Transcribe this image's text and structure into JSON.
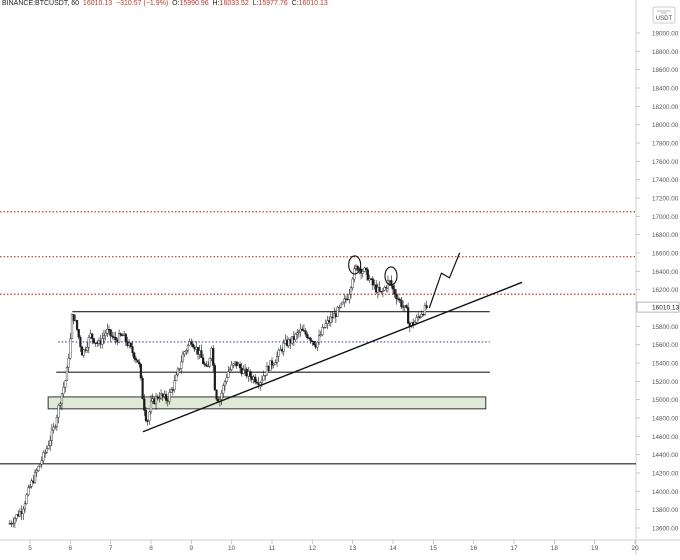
{
  "header": {
    "symbol": "BINANCE:BTCUSDT, 60",
    "close_value": "16010.13",
    "change": "−310.57 (−1.9%)",
    "open_label": "O:",
    "open": "15990.96",
    "high_label": "H:",
    "high": "16033.52",
    "low_label": "L:",
    "low": "15977.76",
    "close_label": "C:",
    "close": "16010.13"
  },
  "chart_data": {
    "type": "candlestick",
    "unit_label": "USDT",
    "currency_icon": "usdt-badge",
    "ylim": [
      13400,
      19200
    ],
    "xlim": [
      4.5,
      20.3
    ],
    "y_ticks": [
      13600,
      13800,
      14000,
      14200,
      14400,
      14600,
      14800,
      15000,
      15200,
      15400,
      15600,
      15800,
      16000,
      16200,
      16400,
      16600,
      16800,
      17000,
      17200,
      17400,
      17600,
      17800,
      18000,
      18200,
      18400,
      18600,
      18800,
      19000
    ],
    "x_ticks": [
      5,
      6,
      7,
      8,
      9,
      10,
      11,
      12,
      13,
      14,
      15,
      16,
      17,
      18,
      19,
      20
    ],
    "last_price": "16010.13",
    "price_path": [
      [
        4.5,
        13650
      ],
      [
        4.8,
        13800
      ],
      [
        5.0,
        14050
      ],
      [
        5.2,
        14250
      ],
      [
        5.4,
        14450
      ],
      [
        5.6,
        14700
      ],
      [
        5.75,
        15000
      ],
      [
        5.9,
        15250
      ],
      [
        6.0,
        15650
      ],
      [
        6.05,
        15950
      ],
      [
        6.15,
        15800
      ],
      [
        6.3,
        15500
      ],
      [
        6.5,
        15700
      ],
      [
        6.7,
        15600
      ],
      [
        6.9,
        15750
      ],
      [
        7.1,
        15650
      ],
      [
        7.3,
        15700
      ],
      [
        7.5,
        15550
      ],
      [
        7.7,
        15400
      ],
      [
        7.8,
        15000
      ],
      [
        7.9,
        14750
      ],
      [
        8.0,
        14950
      ],
      [
        8.2,
        15050
      ],
      [
        8.4,
        15000
      ],
      [
        8.6,
        15200
      ],
      [
        8.8,
        15500
      ],
      [
        9.0,
        15650
      ],
      [
        9.2,
        15500
      ],
      [
        9.4,
        15300
      ],
      [
        9.5,
        15600
      ],
      [
        9.6,
        15050
      ],
      [
        9.7,
        15000
      ],
      [
        9.9,
        15300
      ],
      [
        10.1,
        15400
      ],
      [
        10.3,
        15300
      ],
      [
        10.5,
        15250
      ],
      [
        10.7,
        15200
      ],
      [
        10.9,
        15350
      ],
      [
        11.1,
        15450
      ],
      [
        11.3,
        15600
      ],
      [
        11.5,
        15650
      ],
      [
        11.7,
        15750
      ],
      [
        11.9,
        15700
      ],
      [
        12.1,
        15600
      ],
      [
        12.3,
        15800
      ],
      [
        12.5,
        15900
      ],
      [
        12.7,
        16000
      ],
      [
        12.9,
        16150
      ],
      [
        13.0,
        16350
      ],
      [
        13.1,
        16450
      ],
      [
        13.3,
        16400
      ],
      [
        13.5,
        16250
      ],
      [
        13.7,
        16150
      ],
      [
        13.9,
        16300
      ],
      [
        14.0,
        16200
      ],
      [
        14.2,
        16050
      ],
      [
        14.35,
        15950
      ],
      [
        14.4,
        15800
      ],
      [
        14.55,
        15850
      ],
      [
        14.7,
        15950
      ],
      [
        14.85,
        16010
      ]
    ],
    "horizontal_lines": [
      {
        "kind": "dotted-red",
        "y": 17050
      },
      {
        "kind": "dotted-red",
        "y": 16560
      },
      {
        "kind": "dotted-red",
        "y": 16150
      },
      {
        "kind": "solid",
        "y": 15960,
        "x_from": 6.05,
        "x_to": 16.4
      },
      {
        "kind": "dotted-blue",
        "y": 15630,
        "x_from": 5.7,
        "x_to": 16.4
      },
      {
        "kind": "solid",
        "y": 15300,
        "x_from": 5.65,
        "x_to": 16.4
      },
      {
        "kind": "solid",
        "y": 14300
      }
    ],
    "zone": {
      "y_low": 14900,
      "y_high": 15030,
      "x_from": 5.45,
      "x_to": 16.3,
      "color": "#dfead6"
    },
    "trendline": {
      "from": [
        7.8,
        14650
      ],
      "to": [
        17.2,
        16280
      ]
    },
    "projection": [
      [
        14.9,
        16000
      ],
      [
        15.2,
        16380
      ],
      [
        15.4,
        16330
      ],
      [
        15.65,
        16600
      ]
    ],
    "annotations": [
      {
        "kind": "ellipse",
        "x": 13.05,
        "y": 16470
      },
      {
        "kind": "ellipse",
        "x": 13.95,
        "y": 16350
      }
    ]
  },
  "colors": {
    "candle_up": "#1a1a1a",
    "candle_down": "#1a1a1a",
    "dotted_red": "#c0392b",
    "dotted_blue": "#2e46c8",
    "solid_line": "#222222",
    "axis_text": "#555555",
    "price_tag_bg": "#ffffff"
  }
}
